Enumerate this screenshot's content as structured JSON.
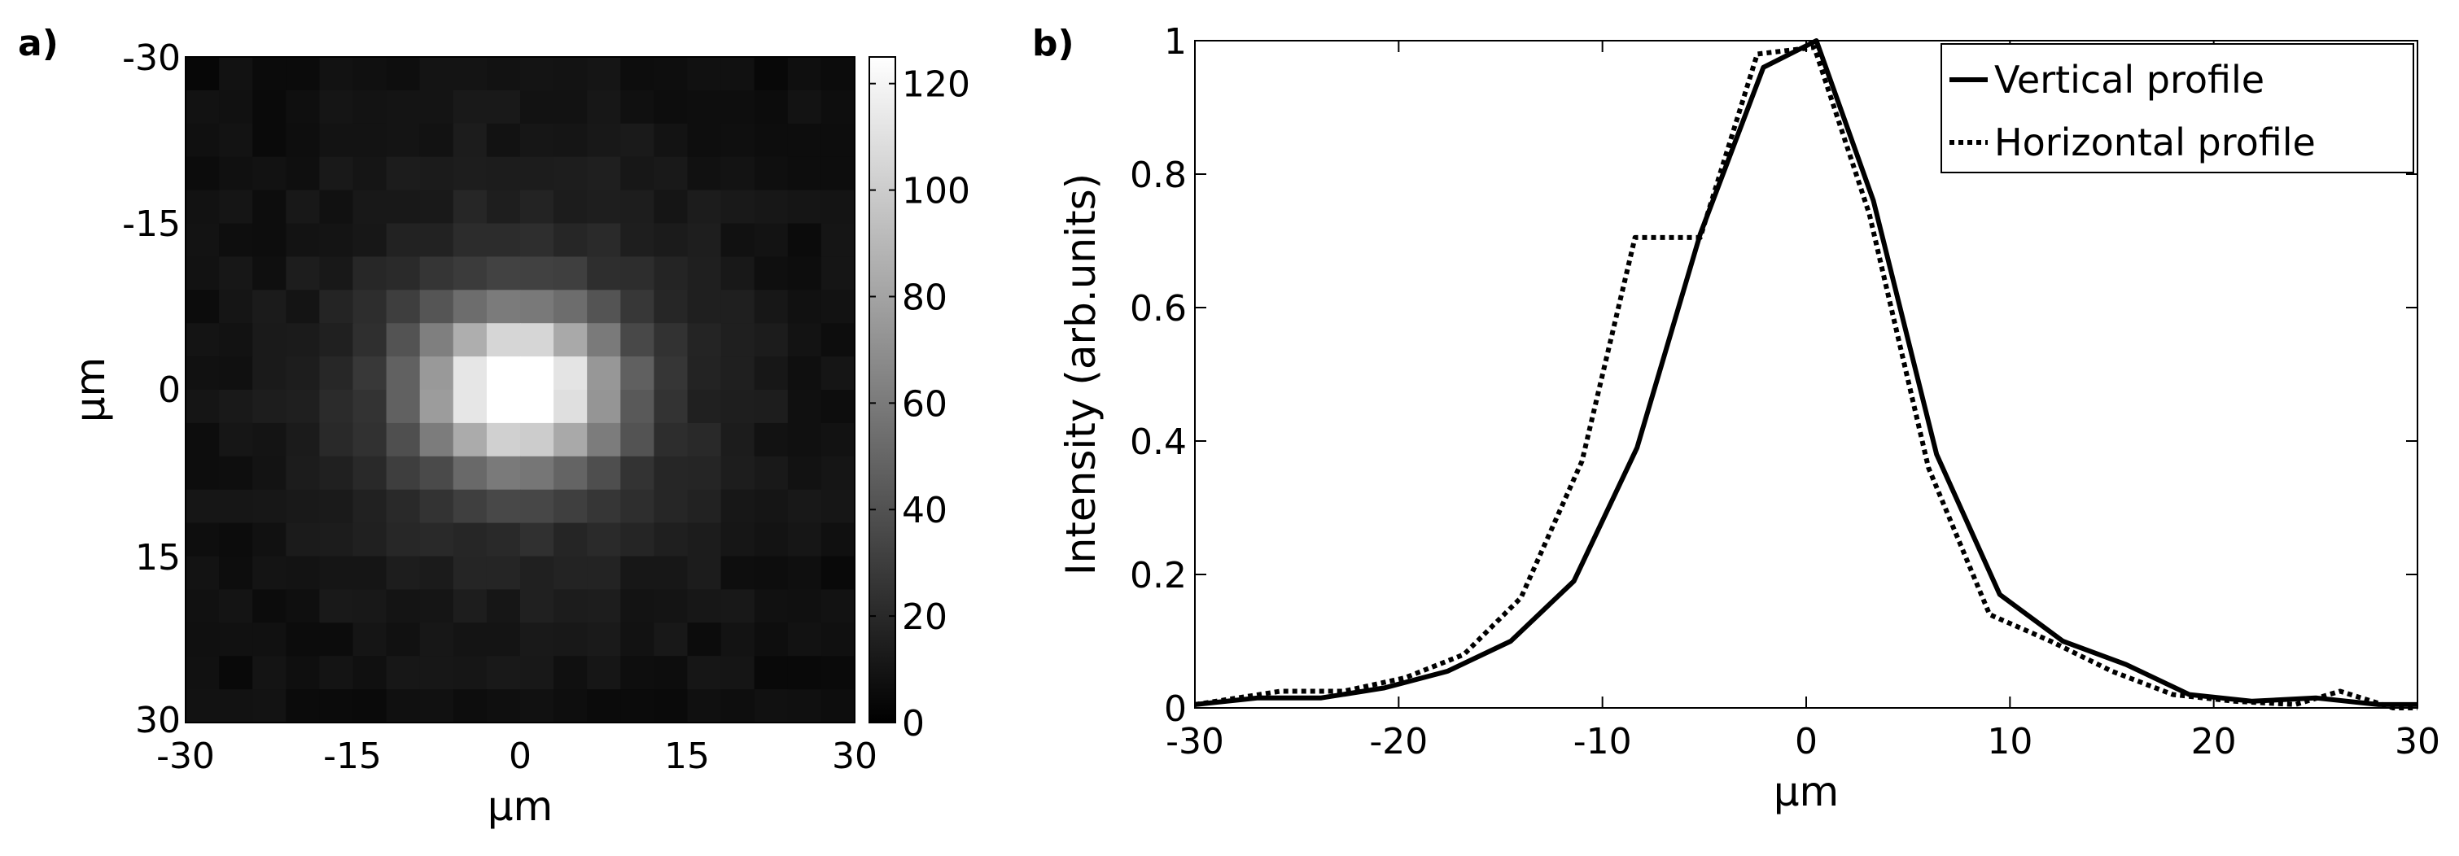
{
  "chart_data": [
    {
      "panel_label": "a)",
      "type": "heatmap",
      "xlabel": "μm",
      "ylabel": "μm",
      "xlim": [
        -30,
        30
      ],
      "ylim": [
        -30,
        30
      ],
      "x_ticks": [
        "-30",
        "-15",
        "0",
        "15",
        "30"
      ],
      "y_ticks": [
        "-30",
        "-15",
        "0",
        "15",
        "30"
      ],
      "colorbar": {
        "range": [
          0,
          125
        ],
        "ticks": [
          "0",
          "20",
          "40",
          "60",
          "80",
          "100",
          "120"
        ],
        "colormap": "gray"
      },
      "grid_size": 20,
      "peak": {
        "x": 0,
        "y": 0,
        "value": 120
      },
      "spot": {
        "sigma_x": 6,
        "sigma_y": 5,
        "halo_sigma": 14,
        "halo_level": 20,
        "background": 6
      }
    },
    {
      "panel_label": "b)",
      "type": "line",
      "xlabel": "μm",
      "ylabel": "Intensity (arb.units)",
      "xlim": [
        -30,
        30
      ],
      "ylim": [
        0,
        1
      ],
      "x_ticks": [
        "-30",
        "-20",
        "-10",
        "0",
        "10",
        "20",
        "30"
      ],
      "y_ticks": [
        "0",
        "0.2",
        "0.4",
        "0.6",
        "0.8",
        "1"
      ],
      "legend_position": "top-right",
      "grid": false,
      "series": [
        {
          "name": "Vertical profile",
          "style": "solid",
          "x": [
            -30,
            -26.9,
            -23.8,
            -20.7,
            -17.6,
            -14.5,
            -11.4,
            -8.3,
            -5.2,
            -2.1,
            0.5,
            3.3,
            6.4,
            9.5,
            12.6,
            15.7,
            18.8,
            21.9,
            25,
            28.1,
            30
          ],
          "y": [
            0.005,
            0.015,
            0.015,
            0.03,
            0.055,
            0.1,
            0.19,
            0.39,
            0.71,
            0.96,
            1.0,
            0.76,
            0.38,
            0.17,
            0.1,
            0.065,
            0.02,
            0.01,
            0.015,
            0.005,
            0.005
          ]
        },
        {
          "name": "Horizontal profile",
          "style": "dotted",
          "x": [
            -30,
            -25.8,
            -22.7,
            -19.7,
            -16.8,
            -14.0,
            -11.0,
            -8.4,
            -5.2,
            -2.4,
            0.4,
            3.1,
            6.0,
            9.0,
            12.0,
            15.0,
            18.0,
            21.0,
            24.0,
            26.2,
            28.8,
            30
          ],
          "y": [
            0.005,
            0.025,
            0.025,
            0.045,
            0.08,
            0.165,
            0.37,
            0.705,
            0.705,
            0.98,
            0.99,
            0.74,
            0.36,
            0.14,
            0.1,
            0.055,
            0.02,
            0.01,
            0.005,
            0.025,
            0.0,
            0.0
          ]
        }
      ]
    }
  ]
}
